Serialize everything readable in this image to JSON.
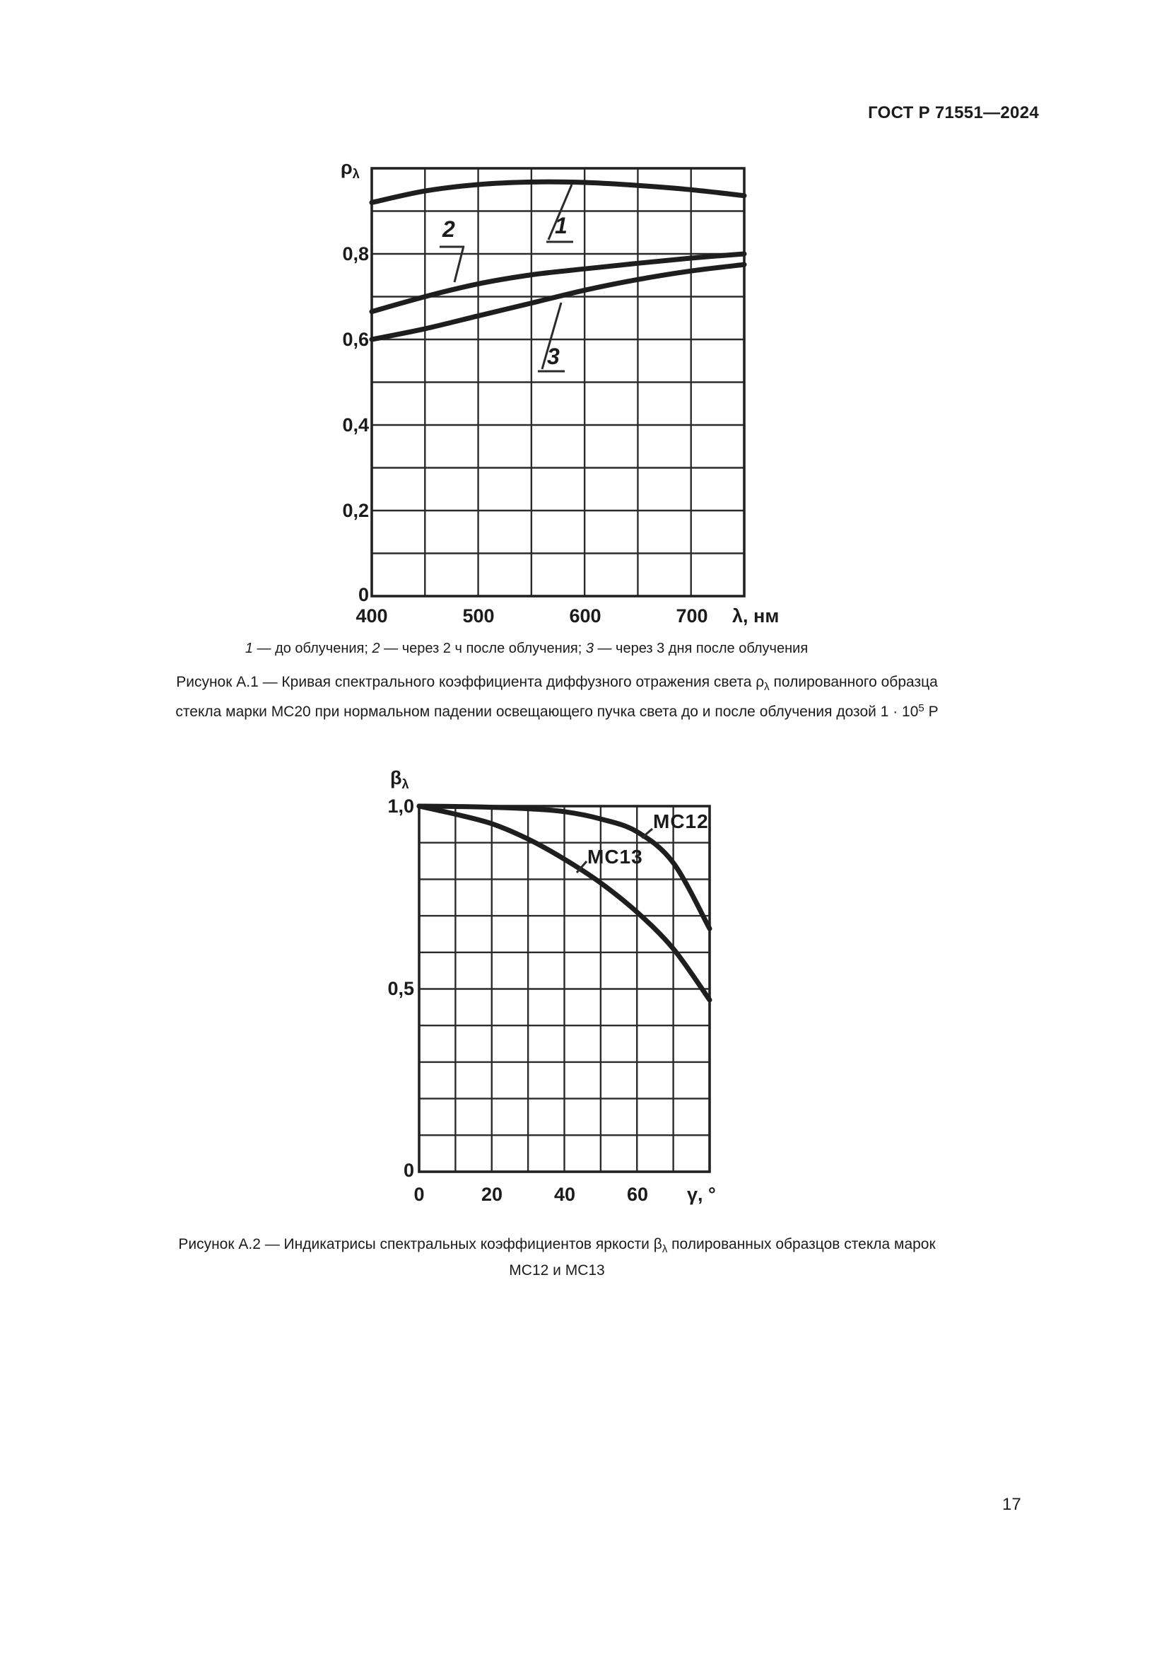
{
  "page": {
    "header": "ГОСТ Р 71551—2024",
    "page_number": "17"
  },
  "figure_a1": {
    "y_axis_label": "ρ",
    "y_axis_label_sub": "λ",
    "y_ticks": [
      "0,8",
      "0,6",
      "0,4",
      "0,2",
      "0"
    ],
    "x_ticks": [
      "400",
      "500",
      "600",
      "700"
    ],
    "x_axis_label": "λ, нм",
    "curve_labels": [
      "1",
      "2",
      "3"
    ],
    "legend": {
      "s0": "1",
      "s1": " — до облучения; ",
      "s2": "2",
      "s3": " — через 2 ч после облучения; ",
      "s4": "3",
      "s5": " — через 3 дня после облучения"
    },
    "caption": {
      "line1_head": "Рисунок А.1 — Кривая спектрального коэффициента диффузного отражения света ",
      "rho": "ρ",
      "rho_sub": "λ",
      "line1_tail": " полированного образца",
      "line2_head": "стекла марки МС20 при нормальном падении освещающего пучка света до и после облучения дозой 1 · 10",
      "dose_exp": "5",
      "line2_tail": " Р"
    }
  },
  "figure_a2": {
    "y_axis_label": "β",
    "y_axis_label_sub": "λ",
    "y_ticks": [
      "1,0",
      "0,5",
      "0"
    ],
    "x_ticks": [
      "0",
      "20",
      "40",
      "60"
    ],
    "x_axis_label": "γ, °",
    "curve_labels": [
      "МС12",
      "МС13"
    ],
    "caption": {
      "line1_head": "Рисунок А.2 — Индикатрисы спектральных коэффициентов яркости ",
      "beta": "β",
      "beta_sub": "λ",
      "line1_tail": " полированных образцов стекла марок",
      "line2": "МС12 и МС13"
    }
  },
  "chart_data": [
    {
      "type": "line",
      "title": "Рисунок А.1 — Кривая спектрального коэффициента диффузного отражения света ρλ полированного образца стекла марки МС20 при нормальном падении освещающего пучка света до и после облучения дозой 1·10^5 Р",
      "xlabel": "λ, нм",
      "ylabel": "ρλ",
      "xlim": [
        400,
        750
      ],
      "ylim": [
        0,
        1.0
      ],
      "x_tick_step": 50,
      "y_tick_step": 0.1,
      "grid": true,
      "legend_position": "below",
      "x": [
        400,
        450,
        500,
        550,
        600,
        650,
        700,
        750
      ],
      "series": [
        {
          "name": "1 — до облучения",
          "values": [
            0.92,
            0.947,
            0.962,
            0.968,
            0.967,
            0.96,
            0.95,
            0.936
          ]
        },
        {
          "name": "2 — через 2 ч после облучения",
          "values": [
            0.665,
            0.7,
            0.73,
            0.751,
            0.765,
            0.778,
            0.79,
            0.8
          ]
        },
        {
          "name": "3 — через 3 дня после облучения",
          "values": [
            0.6,
            0.625,
            0.655,
            0.685,
            0.715,
            0.74,
            0.76,
            0.775
          ]
        }
      ]
    },
    {
      "type": "line",
      "title": "Рисунок А.2 — Индикатрисы спектральных коэффициентов яркости βλ полированных образцов стекла марок МС12 и МС13",
      "xlabel": "γ, °",
      "ylabel": "βλ",
      "xlim": [
        0,
        80
      ],
      "ylim": [
        0,
        1.0
      ],
      "x_tick_step": 10,
      "y_tick_step": 0.1,
      "grid": true,
      "legend_position": "inline",
      "x": [
        0,
        10,
        20,
        30,
        40,
        50,
        60,
        70,
        80
      ],
      "series": [
        {
          "name": "МС12",
          "values": [
            1.0,
            0.999,
            0.997,
            0.993,
            0.985,
            0.965,
            0.93,
            0.845,
            0.665
          ]
        },
        {
          "name": "МС13",
          "values": [
            1.0,
            0.978,
            0.952,
            0.91,
            0.855,
            0.79,
            0.71,
            0.61,
            0.47
          ]
        }
      ]
    }
  ]
}
